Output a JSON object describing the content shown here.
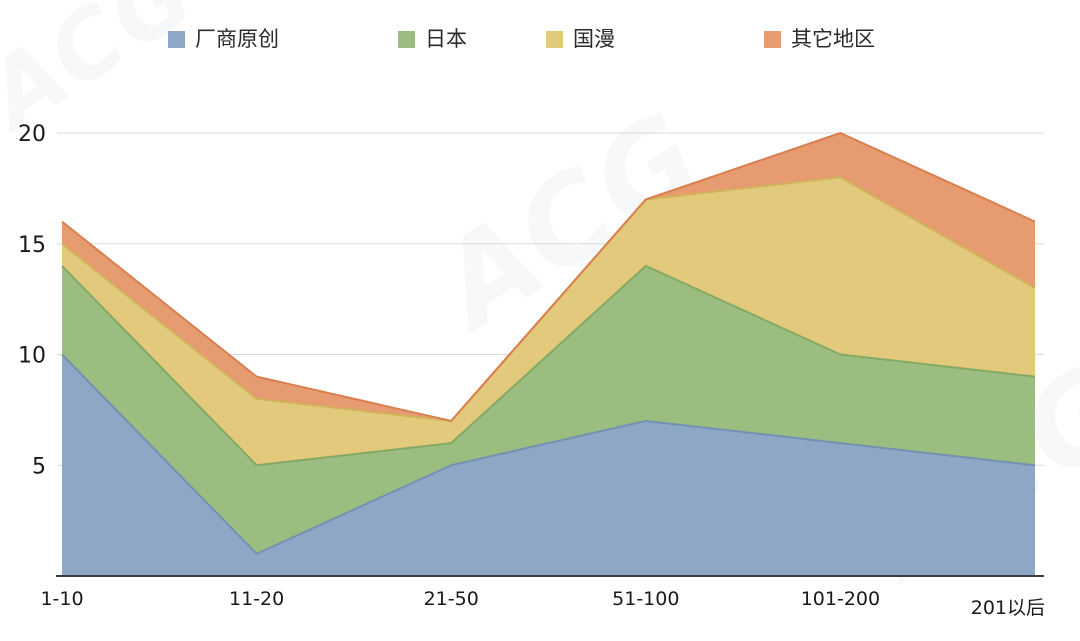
{
  "watermark": {
    "text": "ACG"
  },
  "chart_data": {
    "type": "area",
    "stacked": true,
    "title": "",
    "xlabel": "",
    "ylabel": "",
    "categories": [
      "1-10",
      "11-20",
      "21-50",
      "51-100",
      "101-200",
      "201以后"
    ],
    "series": [
      {
        "name": "厂商原创",
        "color": "#8fa7c6",
        "stroke": "#7490b2",
        "values": [
          10,
          1,
          5,
          7,
          6,
          5
        ]
      },
      {
        "name": "日本",
        "color": "#9cbd80",
        "stroke": "#83a965",
        "values": [
          4,
          4,
          1,
          7,
          4,
          4
        ]
      },
      {
        "name": "国漫",
        "color": "#e2c97c",
        "stroke": "#d2b25a",
        "values": [
          1,
          3,
          1,
          3,
          8,
          4
        ]
      },
      {
        "name": "其它地区",
        "color": "#e69c70",
        "stroke": "#d97f4f",
        "values": [
          1,
          1,
          0,
          0,
          2,
          3
        ]
      }
    ],
    "ylim": [
      0,
      20
    ],
    "yticks": [
      5,
      10,
      15,
      20
    ],
    "grid": true,
    "legend_position": "top"
  }
}
